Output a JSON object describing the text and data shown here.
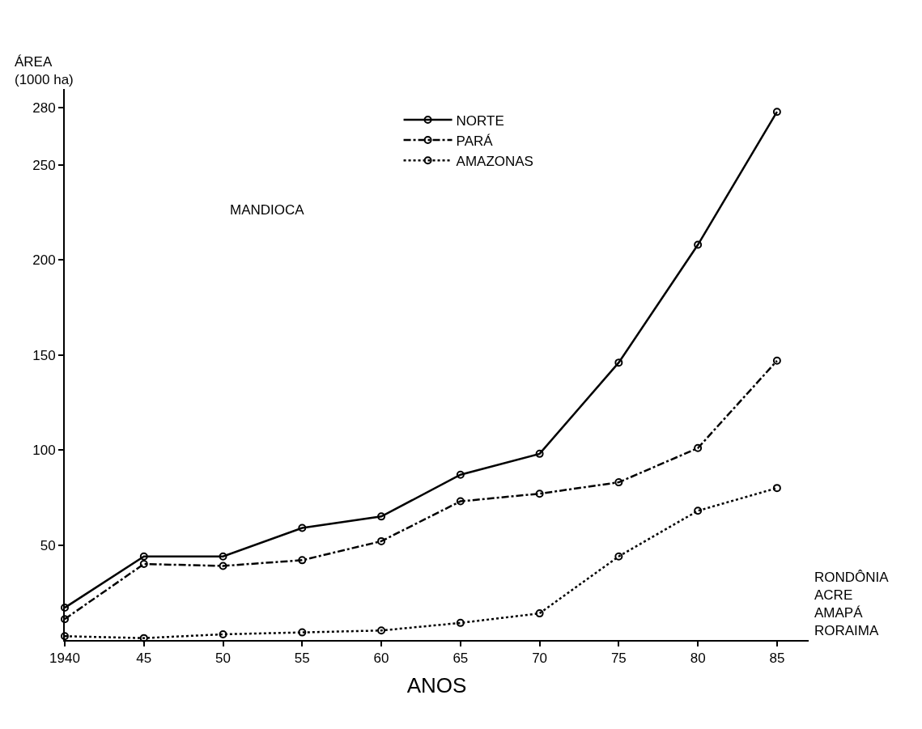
{
  "chart_data": {
    "type": "line",
    "x": [
      1940,
      1945,
      1950,
      1955,
      1960,
      1965,
      1970,
      1975,
      1980,
      1985
    ],
    "series": [
      {
        "name": "NORTE",
        "color": "#000000",
        "line_style": "solid",
        "values": [
          17,
          44,
          44,
          59,
          65,
          87,
          98,
          146,
          208,
          278
        ]
      },
      {
        "name": "PARÁ",
        "color": "#000000",
        "line_style": "dashed",
        "values": [
          11,
          40,
          39,
          42,
          52,
          73,
          77,
          83,
          101,
          147
        ]
      },
      {
        "name": "AMAZONAS",
        "color": "#000000",
        "line_style": "dotted",
        "values": [
          2,
          1,
          3,
          4,
          5,
          9,
          14,
          44,
          68,
          80
        ]
      }
    ],
    "xlabel": "ANOS",
    "ylabel": "ÁREA\n(1000 ha)",
    "annotations": [
      "MANDIOCA",
      "RONDÔNIA\nACRE\nAMAPÁ\nRORAIMA"
    ],
    "xlim": [
      1940,
      1987
    ],
    "ylim": [
      0,
      290
    ],
    "xticks": [
      {
        "value": 1940,
        "label": "1940"
      },
      {
        "value": 1945,
        "label": "45"
      },
      {
        "value": 1950,
        "label": "50"
      },
      {
        "value": 1955,
        "label": "55"
      },
      {
        "value": 1960,
        "label": "60"
      },
      {
        "value": 1965,
        "label": "65"
      },
      {
        "value": 1970,
        "label": "70"
      },
      {
        "value": 1975,
        "label": "75"
      },
      {
        "value": 1980,
        "label": "80"
      },
      {
        "value": 1985,
        "label": "85"
      }
    ],
    "yticks": [
      50,
      100,
      150,
      200,
      250,
      280
    ],
    "marker": "circle",
    "legend": "top"
  }
}
